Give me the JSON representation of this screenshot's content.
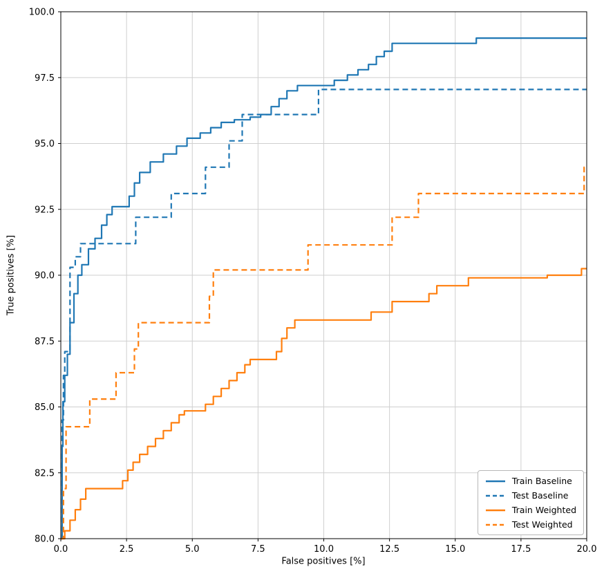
{
  "chart_data": {
    "type": "line",
    "title": "",
    "xlabel": "False positives [%]",
    "ylabel": "True positives [%]",
    "xlim": [
      0,
      20
    ],
    "ylim": [
      80,
      100
    ],
    "xticks": [
      0.0,
      2.5,
      5.0,
      7.5,
      10.0,
      12.5,
      15.0,
      17.5,
      20.0
    ],
    "yticks": [
      80.0,
      82.5,
      85.0,
      87.5,
      90.0,
      92.5,
      95.0,
      97.5,
      100.0
    ],
    "grid": true,
    "grid_color": "#cfcfcf",
    "legend_position": "lower right",
    "step_mode": "after",
    "series": [
      {
        "name": "Train Baseline",
        "color": "#1f77b4",
        "dash": "solid",
        "points": [
          [
            0.0,
            80.0
          ],
          [
            0.05,
            83.5
          ],
          [
            0.08,
            85.2
          ],
          [
            0.15,
            86.2
          ],
          [
            0.25,
            87.0
          ],
          [
            0.35,
            88.2
          ],
          [
            0.5,
            89.3
          ],
          [
            0.65,
            90.0
          ],
          [
            0.8,
            90.4
          ],
          [
            1.05,
            91.0
          ],
          [
            1.3,
            91.4
          ],
          [
            1.55,
            91.9
          ],
          [
            1.75,
            92.3
          ],
          [
            1.95,
            92.6
          ],
          [
            2.6,
            93.0
          ],
          [
            2.8,
            93.5
          ],
          [
            3.0,
            93.9
          ],
          [
            3.4,
            94.3
          ],
          [
            3.9,
            94.6
          ],
          [
            4.4,
            94.9
          ],
          [
            4.8,
            95.2
          ],
          [
            5.3,
            95.4
          ],
          [
            5.7,
            95.6
          ],
          [
            6.1,
            95.8
          ],
          [
            6.6,
            95.9
          ],
          [
            7.2,
            96.0
          ],
          [
            7.6,
            96.1
          ],
          [
            8.0,
            96.4
          ],
          [
            8.3,
            96.7
          ],
          [
            8.6,
            97.0
          ],
          [
            9.0,
            97.2
          ],
          [
            10.4,
            97.4
          ],
          [
            10.9,
            97.6
          ],
          [
            11.3,
            97.8
          ],
          [
            11.7,
            98.0
          ],
          [
            12.0,
            98.3
          ],
          [
            12.3,
            98.5
          ],
          [
            12.6,
            98.8
          ],
          [
            15.8,
            99.0
          ],
          [
            20.0,
            99.0
          ]
        ]
      },
      {
        "name": "Test Baseline",
        "color": "#1f77b4",
        "dash": "dashed",
        "points": [
          [
            0.0,
            80.0
          ],
          [
            0.05,
            84.5
          ],
          [
            0.1,
            86.2
          ],
          [
            0.15,
            87.1
          ],
          [
            0.35,
            90.3
          ],
          [
            0.55,
            90.7
          ],
          [
            0.75,
            91.2
          ],
          [
            2.85,
            92.2
          ],
          [
            4.2,
            93.1
          ],
          [
            5.5,
            94.1
          ],
          [
            6.4,
            95.1
          ],
          [
            6.9,
            96.1
          ],
          [
            9.8,
            97.05
          ],
          [
            20.0,
            97.05
          ]
        ]
      },
      {
        "name": "Train Weighted",
        "color": "#ff7f0e",
        "dash": "solid",
        "points": [
          [
            0.0,
            80.0
          ],
          [
            0.15,
            80.3
          ],
          [
            0.35,
            80.7
          ],
          [
            0.55,
            81.1
          ],
          [
            0.75,
            81.5
          ],
          [
            0.95,
            81.9
          ],
          [
            2.35,
            82.2
          ],
          [
            2.55,
            82.6
          ],
          [
            2.75,
            82.9
          ],
          [
            3.0,
            83.2
          ],
          [
            3.3,
            83.5
          ],
          [
            3.6,
            83.8
          ],
          [
            3.9,
            84.1
          ],
          [
            4.2,
            84.4
          ],
          [
            4.5,
            84.7
          ],
          [
            4.7,
            84.85
          ],
          [
            5.5,
            85.1
          ],
          [
            5.8,
            85.4
          ],
          [
            6.1,
            85.7
          ],
          [
            6.4,
            86.0
          ],
          [
            6.7,
            86.3
          ],
          [
            7.0,
            86.6
          ],
          [
            7.2,
            86.8
          ],
          [
            8.2,
            87.1
          ],
          [
            8.4,
            87.6
          ],
          [
            8.6,
            88.0
          ],
          [
            8.9,
            88.3
          ],
          [
            11.8,
            88.6
          ],
          [
            12.6,
            89.0
          ],
          [
            14.0,
            89.3
          ],
          [
            14.3,
            89.6
          ],
          [
            15.5,
            89.9
          ],
          [
            18.5,
            90.0
          ],
          [
            19.8,
            90.25
          ],
          [
            20.0,
            90.25
          ]
        ]
      },
      {
        "name": "Test Weighted",
        "color": "#ff7f0e",
        "dash": "dashed",
        "points": [
          [
            0.0,
            80.0
          ],
          [
            0.1,
            81.9
          ],
          [
            0.2,
            84.25
          ],
          [
            1.1,
            85.3
          ],
          [
            2.1,
            86.3
          ],
          [
            2.8,
            87.2
          ],
          [
            2.95,
            88.2
          ],
          [
            5.65,
            89.2
          ],
          [
            5.8,
            90.2
          ],
          [
            9.4,
            91.15
          ],
          [
            12.6,
            92.2
          ],
          [
            13.6,
            93.1
          ],
          [
            19.9,
            94.1
          ],
          [
            20.0,
            94.1
          ]
        ]
      }
    ]
  }
}
